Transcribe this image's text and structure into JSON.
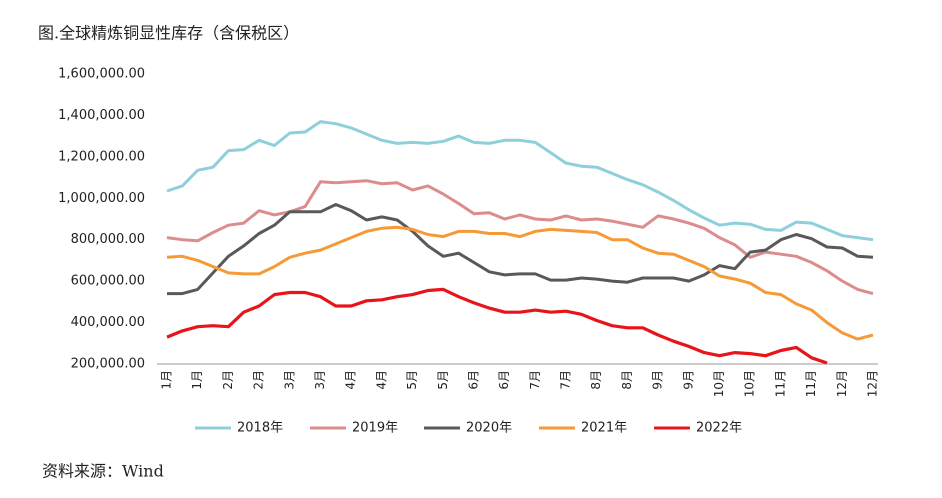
{
  "chart_data": {
    "type": "line",
    "title": "图.全球精炼铜显性库存（含保税区）",
    "source": "资料来源：Wind",
    "categories": [
      "1月",
      null,
      "1月",
      null,
      "2月",
      null,
      "2月",
      null,
      "3月",
      null,
      "3月",
      null,
      "4月",
      null,
      "4月",
      null,
      "5月",
      null,
      "5月",
      null,
      "6月",
      null,
      "6月",
      null,
      "7月",
      null,
      "7月",
      null,
      "8月",
      null,
      "8月",
      null,
      "9月",
      null,
      "9月",
      null,
      "10月",
      null,
      "10月",
      null,
      "11月",
      null,
      "11月",
      null,
      "12月",
      null,
      "12月"
    ],
    "ylim": [
      200000,
      1600000
    ],
    "yticks": [
      {
        "value": 200000,
        "label": "200,000.00"
      },
      {
        "value": 400000,
        "label": "400,000.00"
      },
      {
        "value": 600000,
        "label": "600,000.00"
      },
      {
        "value": 800000,
        "label": "800,000.00"
      },
      {
        "value": 1000000,
        "label": "1,000,000.00"
      },
      {
        "value": 1200000,
        "label": "1,200,000.00"
      },
      {
        "value": 1400000,
        "label": "1,400,000.00"
      },
      {
        "value": 1600000,
        "label": "1,600,000.00"
      }
    ],
    "grid": false,
    "legend": "bottom",
    "series": [
      {
        "name": "2018年",
        "color": "#8ecfdc",
        "values": [
          1035000,
          1060000,
          1135000,
          1150000,
          1230000,
          1235000,
          1280000,
          1255000,
          1315000,
          1320000,
          1370000,
          1360000,
          1340000,
          1310000,
          1280000,
          1265000,
          1270000,
          1265000,
          1275000,
          1300000,
          1270000,
          1265000,
          1280000,
          1280000,
          1270000,
          1220000,
          1170000,
          1155000,
          1150000,
          1120000,
          1090000,
          1065000,
          1030000,
          990000,
          945000,
          905000,
          870000,
          880000,
          875000,
          850000,
          845000,
          885000,
          880000,
          850000,
          820000,
          810000,
          800000
        ]
      },
      {
        "name": "2019年",
        "color": "#dc8c8c",
        "values": [
          810000,
          800000,
          795000,
          835000,
          870000,
          880000,
          940000,
          920000,
          935000,
          960000,
          1080000,
          1075000,
          1080000,
          1085000,
          1070000,
          1075000,
          1040000,
          1060000,
          1020000,
          975000,
          925000,
          930000,
          900000,
          920000,
          900000,
          895000,
          915000,
          895000,
          900000,
          890000,
          875000,
          860000,
          915000,
          900000,
          880000,
          855000,
          810000,
          775000,
          715000,
          740000,
          730000,
          720000,
          690000,
          650000,
          600000,
          560000,
          540000
        ]
      },
      {
        "name": "2020年",
        "color": "#595959",
        "values": [
          540000,
          540000,
          560000,
          640000,
          720000,
          770000,
          830000,
          870000,
          935000,
          935000,
          935000,
          970000,
          940000,
          895000,
          910000,
          895000,
          840000,
          770000,
          720000,
          735000,
          690000,
          645000,
          630000,
          635000,
          635000,
          605000,
          605000,
          615000,
          610000,
          600000,
          595000,
          615000,
          615000,
          615000,
          600000,
          630000,
          675000,
          660000,
          740000,
          750000,
          800000,
          825000,
          805000,
          765000,
          760000,
          720000,
          715000
        ]
      },
      {
        "name": "2021年",
        "color": "#f59a35",
        "values": [
          715000,
          720000,
          700000,
          670000,
          640000,
          635000,
          635000,
          670000,
          715000,
          735000,
          750000,
          780000,
          810000,
          840000,
          855000,
          860000,
          850000,
          825000,
          815000,
          840000,
          840000,
          830000,
          830000,
          815000,
          840000,
          850000,
          845000,
          840000,
          835000,
          800000,
          800000,
          760000,
          735000,
          730000,
          700000,
          670000,
          625000,
          610000,
          590000,
          545000,
          535000,
          490000,
          460000,
          400000,
          350000,
          320000,
          340000
        ]
      },
      {
        "name": "2022年",
        "color": "#e8141a",
        "values": [
          330000,
          360000,
          380000,
          385000,
          380000,
          450000,
          480000,
          535000,
          545000,
          545000,
          525000,
          480000,
          480000,
          505000,
          510000,
          525000,
          535000,
          555000,
          560000,
          525000,
          495000,
          470000,
          450000,
          450000,
          460000,
          450000,
          455000,
          440000,
          410000,
          385000,
          375000,
          375000,
          340000,
          310000,
          285000,
          255000,
          240000,
          255000,
          250000,
          240000,
          265000,
          280000,
          230000,
          205000,
          null,
          null,
          null
        ]
      }
    ]
  }
}
